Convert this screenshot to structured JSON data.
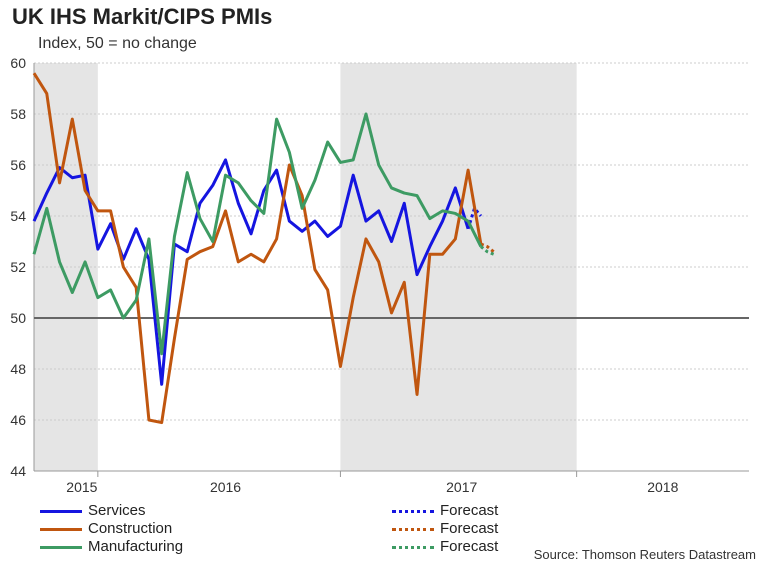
{
  "chart_data": {
    "type": "line",
    "title": "UK IHS Markit/CIPS PMIs",
    "subtitle": "Index, 50 = no change",
    "source": "Source: Thomson Reuters Datastream",
    "ylim": [
      44,
      60
    ],
    "y_ticks": [
      "44",
      "46",
      "48",
      "50",
      "52",
      "54",
      "56",
      "58",
      "60"
    ],
    "reference_line": 50,
    "x_tick_labels": [
      "2015",
      "2016",
      "2017",
      "2018"
    ],
    "x_tick_positions": [
      3.75,
      15,
      33.5,
      49.25
    ],
    "x_range": [
      0,
      56
    ],
    "shaded_ranges": [
      [
        0,
        5
      ],
      [
        24,
        42.5
      ]
    ],
    "colors": {
      "Services": "#1515e0",
      "Construction": "#c0560f",
      "Manufacturing": "#3d9b63",
      "shade": "#e5e5e5",
      "reference": "#666666",
      "grid": "#cccccc"
    },
    "series": [
      {
        "name": "Services",
        "values": [
          53.8,
          54.9,
          55.9,
          55.5,
          55.6,
          52.7,
          53.7,
          52.3,
          53.5,
          52.3,
          47.4,
          52.9,
          52.6,
          54.5,
          55.2,
          56.2,
          54.5,
          53.3,
          55.0,
          55.8,
          53.8,
          53.4,
          53.8,
          53.2,
          53.6,
          55.6,
          53.8,
          54.2,
          53.0,
          54.5,
          51.7,
          52.8,
          53.8,
          55.1,
          53.5
        ],
        "forecast": [
          53.5,
          54.3,
          54.0
        ]
      },
      {
        "name": "Construction",
        "values": [
          59.6,
          58.8,
          55.3,
          57.8,
          55.0,
          54.2,
          54.2,
          52.0,
          51.2,
          46.0,
          45.9,
          49.2,
          52.3,
          52.6,
          52.8,
          54.2,
          52.2,
          52.5,
          52.2,
          53.1,
          56.0,
          54.8,
          51.9,
          51.1,
          48.1,
          50.8,
          53.1,
          52.2,
          50.2,
          51.4,
          47.0,
          52.5,
          52.5,
          53.1,
          55.8,
          52.9
        ],
        "forecast": [
          52.9,
          52.8,
          52.6
        ]
      },
      {
        "name": "Manufacturing",
        "values": [
          52.5,
          54.3,
          52.2,
          51.0,
          52.2,
          50.8,
          51.1,
          50.0,
          50.7,
          53.1,
          48.6,
          53.2,
          55.7,
          53.9,
          53.0,
          55.6,
          55.3,
          54.6,
          54.1,
          57.8,
          56.5,
          54.3,
          55.4,
          56.9,
          56.1,
          56.2,
          58.0,
          56.0,
          55.1,
          54.9,
          54.8,
          53.9,
          54.2,
          54.1,
          53.8,
          52.8
        ],
        "forecast": [
          52.8,
          52.6,
          52.5
        ]
      }
    ]
  },
  "legend": {
    "services": "Services",
    "construction": "Construction",
    "manufacturing": "Manufacturing",
    "forecast1": "Forecast",
    "forecast2": "Forecast",
    "forecast3": "Forecast"
  }
}
